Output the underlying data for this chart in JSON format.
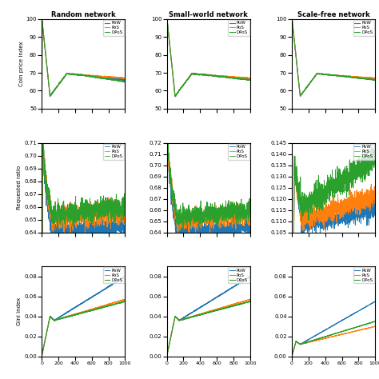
{
  "titles_col": [
    "Random network",
    "Small-world network",
    "Scale-free network"
  ],
  "ylabels_row": [
    "Coin price index",
    "Requested ratio",
    "Gini index"
  ],
  "colors": {
    "PoW": "#1f77b4",
    "PoS": "#ff7f0e",
    "DPoS": "#2ca02c"
  },
  "legend_entries": [
    "PoW",
    "PoS",
    "DPoS"
  ],
  "row0_ylim": [
    50,
    100
  ],
  "row1_ylim_col0": [
    0.64,
    0.71
  ],
  "row1_ylim_col1": [
    0.64,
    0.72
  ],
  "row1_ylim_col2": [
    0.105,
    0.145
  ],
  "row2_ylim": [
    0.0,
    0.09
  ],
  "xlim": [
    0,
    1000
  ],
  "xticks": [
    0,
    200,
    400,
    600,
    800,
    1000
  ]
}
